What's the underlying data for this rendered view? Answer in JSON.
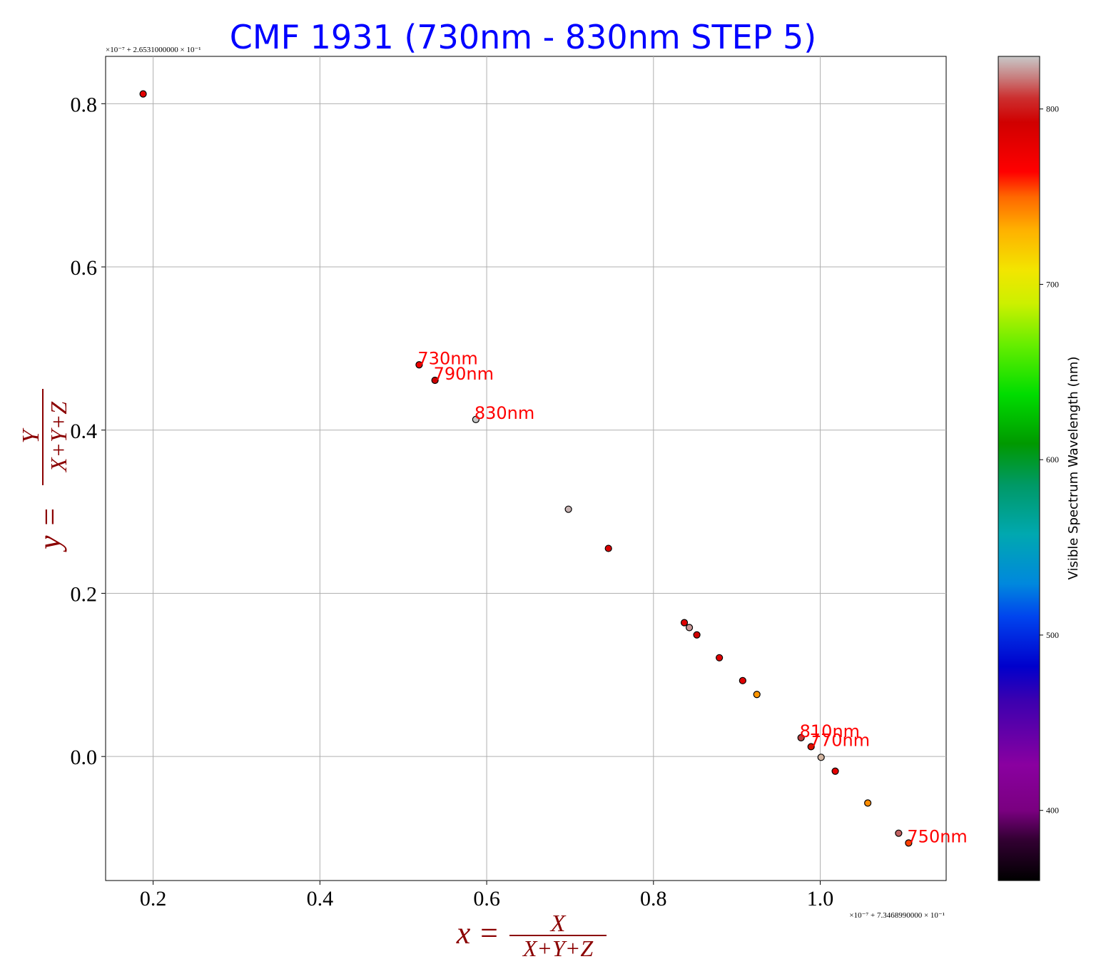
{
  "chart_data": {
    "type": "scatter",
    "title": "CMF 1931 (730nm - 830nm STEP 5)",
    "xlabel": {
      "lhs": "x =",
      "num": "X",
      "den": "X+Y+Z"
    },
    "ylabel": {
      "lhs": "y =",
      "num": "Y",
      "den": "X+Y+Z"
    },
    "x_offset_text": "×10⁻⁷ + 7.3468990000 × 10⁻¹",
    "y_offset_text": "×10⁻⁷ + 2.6531000000 × 10⁻¹",
    "xlim": [
      0.143,
      1.151
    ],
    "ylim": [
      -0.152,
      0.858
    ],
    "xticks": [
      0.2,
      0.4,
      0.6,
      0.8,
      1.0
    ],
    "xtick_labels": [
      "0.2",
      "0.4",
      "0.6",
      "0.8",
      "1.0"
    ],
    "yticks": [
      0.0,
      0.2,
      0.4,
      0.6,
      0.8
    ],
    "ytick_labels": [
      "0.0",
      "0.2",
      "0.4",
      "0.6",
      "0.8"
    ],
    "grid": true,
    "points": [
      {
        "x": 0.188,
        "y": 0.812,
        "color": "#e30000",
        "label": ""
      },
      {
        "x": 0.519,
        "y": 0.48,
        "color": "#ee0000",
        "label": "730nm"
      },
      {
        "x": 0.538,
        "y": 0.461,
        "color": "#cc0000",
        "label": "790nm"
      },
      {
        "x": 0.587,
        "y": 0.413,
        "color": "#c8c8c8",
        "label": "830nm"
      },
      {
        "x": 0.698,
        "y": 0.303,
        "color": "#c8b4b4",
        "label": ""
      },
      {
        "x": 0.746,
        "y": 0.255,
        "color": "#d80000",
        "label": ""
      },
      {
        "x": 0.837,
        "y": 0.164,
        "color": "#e00000",
        "label": ""
      },
      {
        "x": 0.843,
        "y": 0.158,
        "color": "#c89696",
        "label": ""
      },
      {
        "x": 0.852,
        "y": 0.149,
        "color": "#d00000",
        "label": ""
      },
      {
        "x": 0.879,
        "y": 0.121,
        "color": "#de0000",
        "label": ""
      },
      {
        "x": 0.907,
        "y": 0.093,
        "color": "#e00000",
        "label": ""
      },
      {
        "x": 0.924,
        "y": 0.076,
        "color": "#ff9600",
        "label": ""
      },
      {
        "x": 0.977,
        "y": 0.023,
        "color": "#bb4040",
        "label": "810nm"
      },
      {
        "x": 0.989,
        "y": 0.012,
        "color": "#dd1100",
        "label": "770nm"
      },
      {
        "x": 1.001,
        "y": -0.001,
        "color": "#d2b4a0",
        "label": ""
      },
      {
        "x": 1.018,
        "y": -0.018,
        "color": "#e40000",
        "label": ""
      },
      {
        "x": 1.057,
        "y": -0.057,
        "color": "#ff8c00",
        "label": ""
      },
      {
        "x": 1.094,
        "y": -0.094,
        "color": "#c06060",
        "label": ""
      },
      {
        "x": 1.106,
        "y": -0.106,
        "color": "#ff4000",
        "label": "750nm"
      }
    ],
    "label_color": "#ff0000",
    "title_color": "#0000ff",
    "axis_label_color": "#8b0000",
    "colorbar": {
      "label": "Visible Spectrum Wavelength (nm)",
      "range": [
        360,
        830
      ],
      "ticks": [
        400,
        500,
        600,
        700,
        800
      ],
      "tick_labels": [
        "400",
        "500",
        "600",
        "700",
        "800"
      ]
    }
  }
}
